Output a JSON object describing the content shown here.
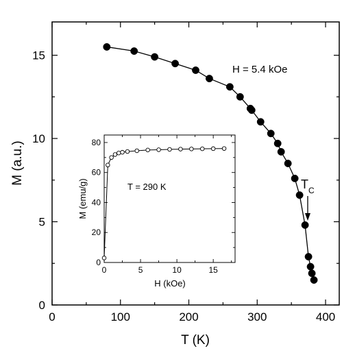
{
  "chart_data": [
    {
      "type": "line",
      "xlabel": "T (K)",
      "ylabel": "M (a.u.)",
      "xlim": [
        0,
        420
      ],
      "ylim": [
        0,
        17
      ],
      "xticks": [
        0,
        100,
        200,
        300,
        400
      ],
      "yticks": [
        0,
        5,
        10,
        15
      ],
      "xtick_labels": [
        "0",
        "100",
        "200",
        "300",
        "400"
      ],
      "ytick_labels": [
        "0",
        "5",
        "10",
        "15"
      ],
      "annotations": {
        "field": "H = 5.4 kOe",
        "tc_main": "T",
        "tc_sub": "C"
      },
      "tc_temperature": 370,
      "series": [
        {
          "marker": "filled-circle",
          "x": [
            80,
            120,
            150,
            180,
            210,
            230,
            260,
            275,
            290,
            292,
            305,
            320,
            330,
            335,
            345,
            355,
            362,
            370,
            375,
            378,
            380,
            383
          ],
          "y": [
            15.5,
            15.25,
            14.9,
            14.5,
            14.1,
            13.6,
            13.1,
            12.5,
            11.8,
            11.7,
            11.0,
            10.3,
            9.7,
            9.2,
            8.5,
            7.6,
            6.6,
            4.8,
            2.9,
            2.3,
            1.9,
            1.5
          ]
        }
      ]
    },
    {
      "type": "line",
      "xlabel": "H (kOe)",
      "ylabel": "M (emu/g)",
      "xlim": [
        0,
        18
      ],
      "ylim": [
        0,
        85
      ],
      "xticks": [
        0,
        5,
        10,
        15
      ],
      "yticks": [
        0,
        20,
        40,
        60,
        80
      ],
      "xtick_labels": [
        "0",
        "5",
        "10",
        "15"
      ],
      "ytick_labels": [
        "0",
        "20",
        "40",
        "60",
        "80"
      ],
      "annotations": {
        "temperature": "T = 290 K"
      },
      "series": [
        {
          "marker": "open-circle",
          "x": [
            0,
            0.5,
            1.0,
            1.5,
            2.0,
            2.5,
            3.2,
            4.5,
            6.0,
            7.5,
            9.0,
            10.5,
            12.0,
            13.5,
            15.0,
            16.5
          ],
          "y": [
            3,
            65,
            70,
            72,
            73,
            73.5,
            74,
            74.5,
            75,
            75.2,
            75.4,
            75.6,
            75.7,
            75.8,
            75.9,
            76
          ]
        }
      ]
    }
  ]
}
